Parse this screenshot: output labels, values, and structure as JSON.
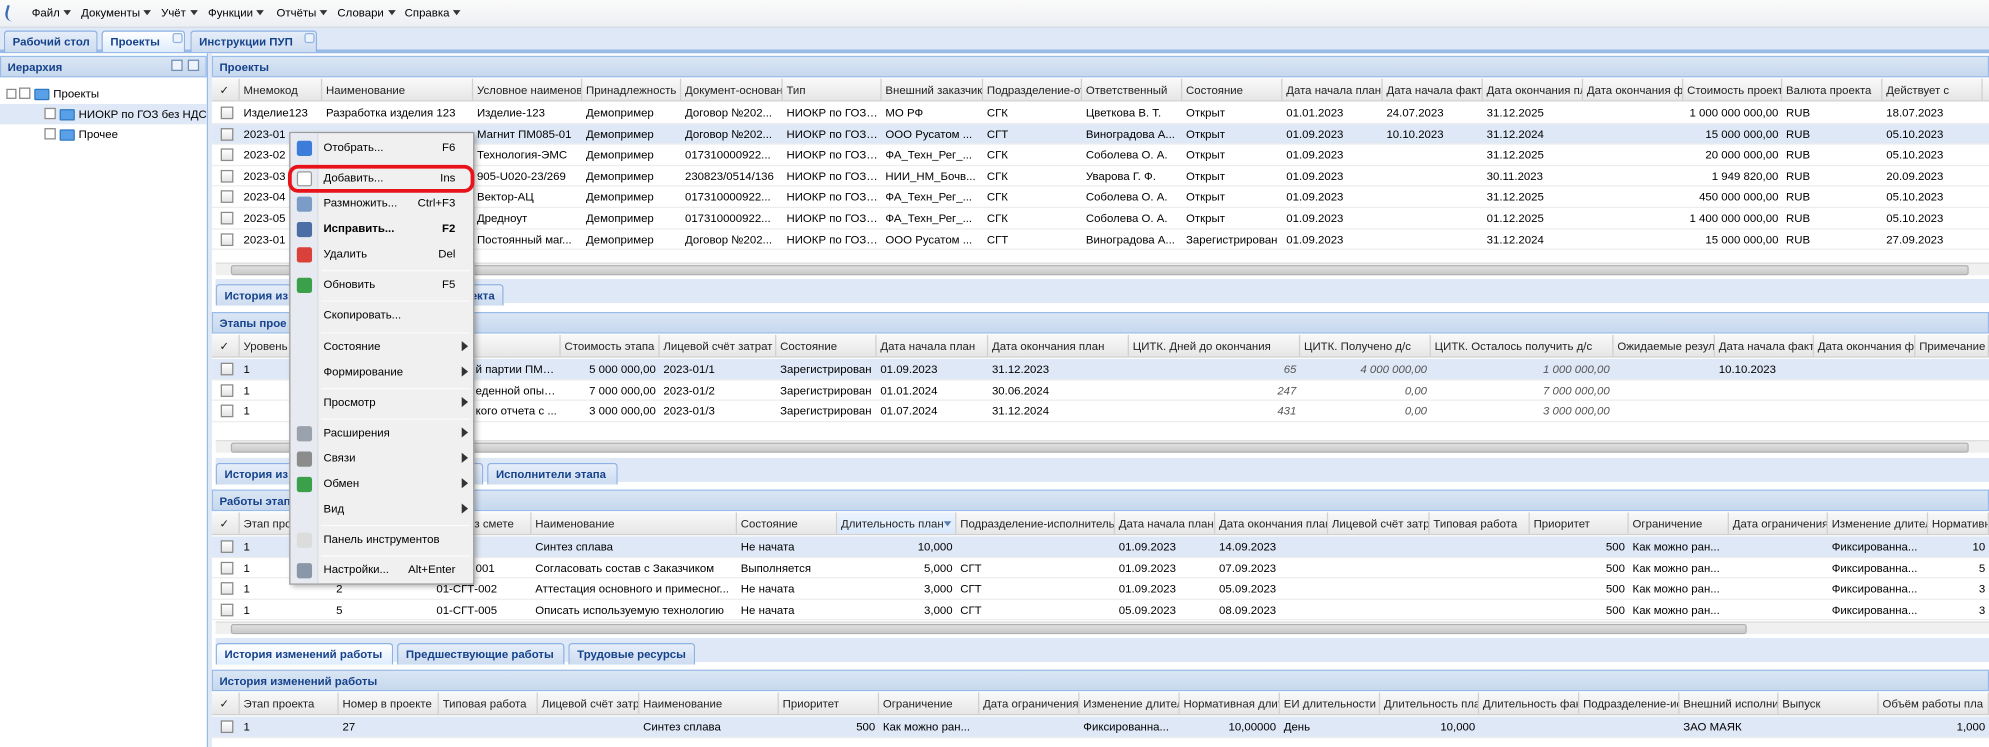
{
  "menu": [
    "Файл",
    "Документы",
    "Учёт",
    "Функции",
    "Отчёты",
    "Словари",
    "Справка"
  ],
  "tabs": [
    "Рабочий стол",
    "Проекты",
    "Инструкции ПУП"
  ],
  "hierarchy": {
    "title": "Иерархия",
    "nodes": [
      "Проекты",
      "НИОКР по ГОЗ без НДС",
      "Прочее"
    ]
  },
  "projects": {
    "title": "Проекты",
    "columns": [
      "✓",
      "Мнемокод",
      "Наименование",
      "Условное наименова",
      "Принадлежность",
      "Документ-основан",
      "Тип",
      "Внешний заказчик",
      "Подразделение-от",
      "Ответственный",
      "Состояние",
      "Дата начала план.",
      "Дата начала факт",
      "Дата окончания пл",
      "Дата окончания ф",
      "Стоимость проекта",
      "Валюта проекта",
      "Действует с"
    ],
    "rows": [
      [
        "Изделие123",
        "Разработка изделия 123",
        "Изделие-123",
        "Демопример",
        "Договор №202...",
        "НИОКР по ГОЗ ...",
        "МО РФ",
        "СГК",
        "Цветкова В. Т.",
        "Открыт",
        "01.01.2023",
        "24.07.2023",
        "31.12.2025",
        null,
        "1 000 000 000,00",
        "RUB",
        "18.07.2023"
      ],
      [
        "2023-01",
        null,
        "Магнит ПМ085-01",
        "Демопример",
        "Договор №202...",
        "НИОКР по ГОЗ ...",
        "ООО Русатом ...",
        "СГТ",
        "Виноградова А...",
        "Открыт",
        "01.09.2023",
        "10.10.2023",
        "31.12.2024",
        null,
        "15 000 000,00",
        "RUB",
        "05.10.2023"
      ],
      [
        "2023-02",
        null,
        "Технология-ЭМС",
        "Демопример",
        "017310000922...",
        "НИОКР по ГОЗ ...",
        "ФА_Техн_Рег_...",
        "СГК",
        "Соболева О. А.",
        "Открыт",
        "01.09.2023",
        null,
        "31.12.2025",
        null,
        "20 000 000,00",
        "RUB",
        "05.10.2023"
      ],
      [
        "2023-03",
        null,
        "905-U020-23/269",
        "Демопример",
        "230823/0514/136",
        "НИОКР по ГОЗ ...",
        "НИИ_НМ_Бочв...",
        "СГК",
        "Уварова Г. Ф.",
        "Открыт",
        "01.09.2023",
        null,
        "30.11.2023",
        null,
        "1 949 820,00",
        "RUB",
        "20.09.2023"
      ],
      [
        "2023-04",
        null,
        "Вектор-АЦ",
        "Демопример",
        "017310000922...",
        "НИОКР по ГОЗ ...",
        "ФА_Техн_Рег_...",
        "СГК",
        "Соболева О. А.",
        "Открыт",
        "01.09.2023",
        null,
        "31.12.2025",
        null,
        "450 000 000,00",
        "RUB",
        "05.10.2023"
      ],
      [
        "2023-05",
        null,
        "Дредноут",
        "Демопример",
        "017310000922...",
        "НИОКР по ГОЗ ...",
        "ФА_Техн_Рег_...",
        "СГК",
        "Соболева О. А.",
        "Открыт",
        "01.09.2023",
        null,
        "01.12.2025",
        null,
        "1 400 000 000,00",
        "RUB",
        "05.10.2023"
      ],
      [
        "2023-01",
        null,
        "Постоянный маг...",
        "Демопример",
        "Договор №202...",
        "НИОКР по ГОЗ ...",
        "ООО Русатом ...",
        "СГТ",
        "Виноградова А...",
        "Зарегистрирован",
        "01.09.2023",
        null,
        "31.12.2024",
        null,
        "15 000 000,00",
        "RUB",
        "27.09.2023"
      ]
    ]
  },
  "project_tabs": [
    "История из",
    "оекта"
  ],
  "stages": {
    "title": "Этапы прое",
    "columns": [
      "✓",
      "Уровень",
      null,
      null,
      "Стоимость этапа",
      "Лицевой счёт затрат",
      "Состояние",
      "Дата начала план",
      "Дата окончания план",
      "ЦИТК. Дней до окончания",
      "ЦИТК. Получено д/с",
      "ЦИТК. Осталось получить д/с",
      "Ожидаемые резул",
      "Дата начала факт",
      "Дата окончания ф",
      "Примечание"
    ],
    "rows": [
      [
        "1",
        null,
        "й партии ПМ0...",
        "5 000 000,00",
        "2023-01/1",
        "Зарегистрирован",
        "01.09.2023",
        "31.12.2023",
        "65",
        "4 000 000,00",
        "1 000 000,00",
        null,
        "10.10.2023",
        null,
        null
      ],
      [
        "1",
        null,
        "еденной опыт...",
        "7 000 000,00",
        "2023-01/2",
        "Зарегистрирован",
        "01.01.2024",
        "30.06.2024",
        "247",
        "0,00",
        "7 000 000,00",
        null,
        null,
        null,
        null
      ],
      [
        "1",
        null,
        "кого отчета с ...",
        "3 000 000,00",
        "2023-01/3",
        "Зарегистрирован",
        "01.07.2024",
        "31.12.2024",
        "431",
        "0,00",
        "3 000 000,00",
        null,
        null,
        null,
        null
      ]
    ]
  },
  "stage_tabs": [
    "История из",
    "Исполнители этапа"
  ],
  "works": {
    "title": "Работы этап",
    "columns": [
      "✓",
      "Этап прое",
      null,
      "з смете",
      "Наименование",
      "Состояние",
      "Длительность план",
      "Подразделение-исполнитель",
      "Дата начала план",
      "Дата окончания план",
      "Лицевой счёт затр",
      "Типовая работа",
      "Приоритет",
      "Ограничение",
      "Дата ограничения",
      "Изменение длител",
      "Нормативн"
    ],
    "rows": [
      [
        "1",
        null,
        null,
        "Синтез сплава",
        "Не начата",
        "10,000",
        null,
        "01.09.2023",
        "14.09.2023",
        null,
        null,
        "500",
        "Как можно ран...",
        null,
        "Фиксированна...",
        "10"
      ],
      [
        "1",
        null,
        "001",
        "Согласовать состав с Заказчиком",
        "Выполняется",
        "5,000",
        "СГТ",
        "01.09.2023",
        "07.09.2023",
        null,
        null,
        "500",
        "Как можно ран...",
        null,
        "Фиксированна...",
        "5"
      ],
      [
        "1",
        "2",
        "01-СГТ-002",
        "Аттестация основного и примесног...",
        "Не начата",
        "3,000",
        "СГТ",
        "01.09.2023",
        "05.09.2023",
        null,
        null,
        "500",
        "Как можно ран...",
        null,
        "Фиксированна...",
        "3"
      ],
      [
        "1",
        "5",
        "01-СГТ-005",
        "Описать используемую технологию",
        "Не начата",
        "3,000",
        "СГТ",
        "05.09.2023",
        "08.09.2023",
        null,
        null,
        "500",
        "Как можно ран...",
        null,
        "Фиксированна...",
        "3"
      ]
    ]
  },
  "work_tabs": [
    "История изменений работы",
    "Предшествующие работы",
    "Трудовые ресурсы"
  ],
  "history": {
    "title": "История изменений работы",
    "columns": [
      "✓",
      "Этап проекта",
      "Номер в проекте",
      "Типовая работа",
      "Лицевой счёт затр",
      "Наименование",
      "Приоритет",
      "Ограничение",
      "Дата ограничения",
      "Изменение длител",
      "Нормативная длит",
      "ЕИ длительности",
      "Длительность пла",
      "Длительность фак",
      "Подразделение-ис",
      "Внешний исполнит",
      "Выпуск",
      "Объём работы пла"
    ],
    "rows": [
      [
        "1",
        "27",
        null,
        null,
        "Синтез сплава",
        "500",
        "Как можно ран...",
        null,
        "Фиксированна...",
        "10,00000",
        "День",
        "10,000",
        null,
        null,
        "ЗАО МАЯК",
        null,
        "1,000"
      ]
    ]
  },
  "context_menu": [
    {
      "label": "Отобрать...",
      "shortcut": "F6"
    },
    {
      "label": "Добавить...",
      "shortcut": "Ins"
    },
    {
      "label": "Размножить...",
      "shortcut": "Ctrl+F3"
    },
    {
      "label": "Исправить...",
      "shortcut": "F2"
    },
    {
      "label": "Удалить",
      "shortcut": "Del"
    },
    {
      "label": "Обновить",
      "shortcut": "F5"
    },
    {
      "label": "Скопировать..."
    },
    {
      "label": "Состояние"
    },
    {
      "label": "Формирование"
    },
    {
      "label": "Просмотр"
    },
    {
      "label": "Расширения"
    },
    {
      "label": "Связи"
    },
    {
      "label": "Обмен"
    },
    {
      "label": "Вид"
    },
    {
      "label": "Панель инструментов"
    },
    {
      "label": "Настройки...",
      "shortcut": "Alt+Enter"
    }
  ]
}
